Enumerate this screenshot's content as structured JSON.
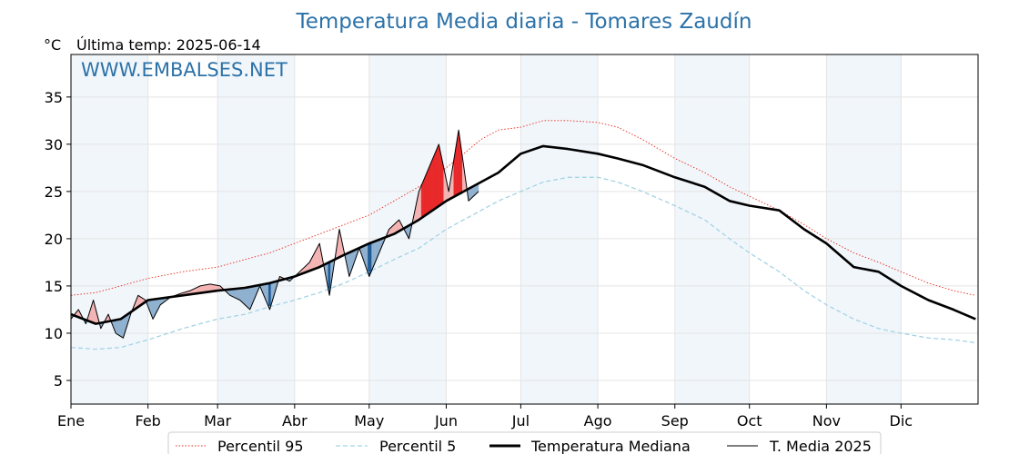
{
  "chart_data": {
    "type": "line",
    "title": "Temperatura Media diaria - Tomares  Zaudín",
    "ylabel": "°C",
    "subtitle": "Última temp: 2025-06-14",
    "watermark": "WWW.EMBALSES.NET",
    "xlim": [
      0,
      365
    ],
    "ylim": [
      2.5,
      39.5
    ],
    "ytick_values": [
      5,
      10,
      15,
      20,
      25,
      30,
      35
    ],
    "yticks": [
      "5",
      "10",
      "15",
      "20",
      "25",
      "30",
      "35"
    ],
    "month_starts": [
      0,
      31,
      59,
      90,
      120,
      151,
      181,
      212,
      243,
      273,
      304,
      334
    ],
    "months": [
      "Ene",
      "Feb",
      "Mar",
      "Abr",
      "May",
      "Jun",
      "Jul",
      "Ago",
      "Sep",
      "Oct",
      "Nov",
      "Dic"
    ],
    "grid": true,
    "legend_position": "bottom-center",
    "series": [
      {
        "name": "Percentil 95",
        "style": "dotted",
        "color": "#e8291c",
        "x": [
          0,
          10,
          20,
          31,
          45,
          59,
          70,
          80,
          90,
          100,
          110,
          120,
          130,
          140,
          151,
          158,
          165,
          172,
          181,
          190,
          200,
          212,
          220,
          230,
          243,
          255,
          265,
          273,
          285,
          295,
          304,
          315,
          325,
          334,
          345,
          355,
          364
        ],
        "values": [
          14.0,
          14.3,
          15.0,
          15.8,
          16.5,
          17.0,
          17.8,
          18.5,
          19.5,
          20.5,
          21.5,
          22.5,
          24.0,
          25.5,
          27.5,
          29.0,
          30.5,
          31.5,
          31.8,
          32.5,
          32.5,
          32.3,
          31.8,
          30.5,
          28.5,
          27.0,
          25.5,
          24.5,
          23.0,
          21.5,
          20.0,
          18.5,
          17.5,
          16.5,
          15.3,
          14.5,
          14.0
        ]
      },
      {
        "name": "Percentil 5",
        "style": "dashed",
        "color": "#a4d3e4",
        "x": [
          0,
          10,
          20,
          31,
          45,
          59,
          70,
          80,
          90,
          100,
          110,
          120,
          130,
          140,
          151,
          158,
          165,
          172,
          181,
          190,
          200,
          212,
          220,
          230,
          243,
          255,
          265,
          273,
          285,
          295,
          304,
          315,
          325,
          334,
          345,
          355,
          364
        ],
        "values": [
          8.5,
          8.3,
          8.5,
          9.3,
          10.5,
          11.5,
          12.0,
          12.8,
          13.5,
          14.3,
          15.3,
          16.5,
          17.8,
          19.0,
          21.0,
          22.0,
          23.0,
          24.0,
          25.0,
          26.0,
          26.5,
          26.5,
          26.0,
          25.0,
          23.5,
          22.0,
          20.0,
          18.5,
          16.5,
          14.5,
          13.0,
          11.5,
          10.5,
          10.0,
          9.5,
          9.3,
          9.0
        ]
      },
      {
        "name": "Temperatura Mediana",
        "style": "solid-thick",
        "color": "#000000",
        "x": [
          0,
          10,
          20,
          31,
          45,
          59,
          70,
          80,
          90,
          100,
          110,
          120,
          130,
          140,
          151,
          158,
          165,
          172,
          181,
          190,
          200,
          212,
          220,
          230,
          243,
          255,
          265,
          273,
          285,
          295,
          304,
          315,
          325,
          334,
          345,
          355,
          364
        ],
        "values": [
          12.0,
          11.0,
          11.5,
          13.5,
          14.0,
          14.5,
          14.8,
          15.3,
          16.0,
          17.0,
          18.3,
          19.5,
          20.5,
          22.0,
          24.0,
          25.0,
          26.0,
          27.0,
          29.0,
          29.8,
          29.5,
          29.0,
          28.5,
          27.8,
          26.5,
          25.5,
          24.0,
          23.5,
          23.0,
          21.0,
          19.5,
          17.0,
          16.5,
          15.0,
          13.5,
          12.5,
          11.5
        ]
      },
      {
        "name": "T. Media 2025",
        "style": "solid-thin",
        "color": "#000000",
        "x": [
          0,
          3,
          6,
          9,
          12,
          15,
          18,
          21,
          24,
          27,
          30,
          33,
          36,
          40,
          44,
          48,
          52,
          56,
          60,
          64,
          68,
          72,
          76,
          80,
          84,
          88,
          92,
          96,
          100,
          104,
          108,
          112,
          116,
          120,
          124,
          128,
          132,
          136,
          140,
          144,
          148,
          152,
          156,
          160,
          164
        ],
        "values": [
          11.5,
          12.5,
          11.0,
          13.5,
          10.5,
          12.0,
          10.0,
          9.5,
          12.0,
          14.0,
          13.5,
          11.5,
          13.0,
          13.8,
          14.2,
          14.5,
          15.0,
          15.2,
          15.0,
          14.0,
          13.5,
          12.5,
          15.0,
          12.5,
          16.0,
          15.5,
          16.5,
          17.5,
          19.5,
          14.0,
          21.0,
          16.0,
          19.0,
          16.0,
          18.5,
          21.0,
          22.0,
          20.0,
          25.0,
          27.5,
          30.0,
          25.0,
          31.5,
          24.0,
          25.0
        ]
      }
    ]
  }
}
